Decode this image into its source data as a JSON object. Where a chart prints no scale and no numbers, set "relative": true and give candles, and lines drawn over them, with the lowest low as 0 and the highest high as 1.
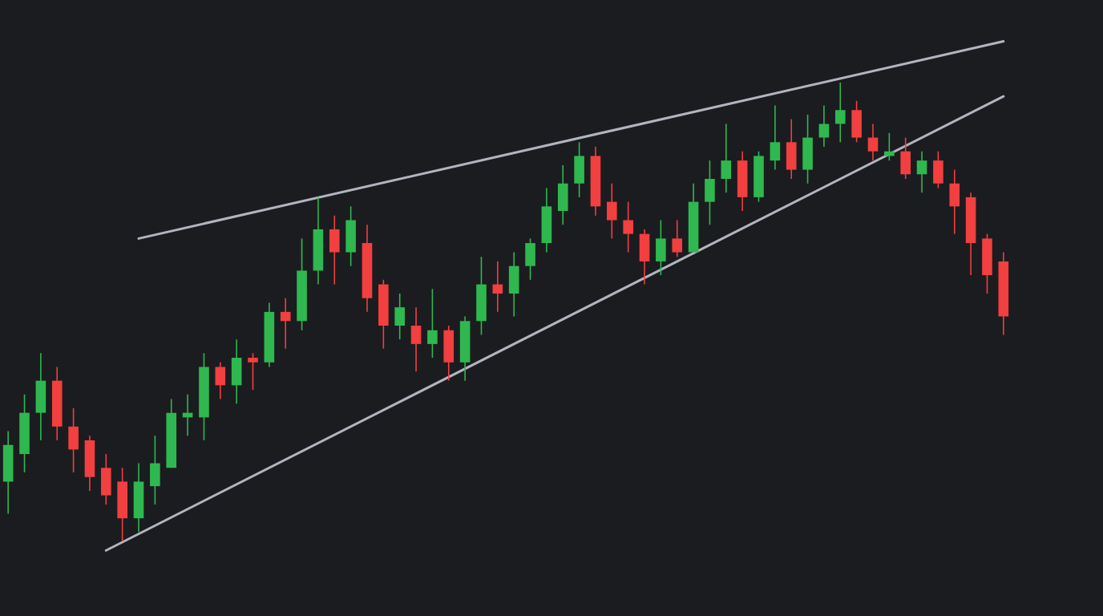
{
  "chart_data": {
    "type": "candlestick",
    "relative": true,
    "categories": [
      null,
      null,
      null,
      null,
      null,
      null,
      null,
      null,
      null,
      null,
      null,
      null,
      null,
      null,
      null,
      null,
      null,
      null,
      null,
      null,
      null,
      null,
      null,
      null,
      null,
      null,
      null,
      null,
      null,
      null,
      null,
      null,
      null,
      null,
      null,
      null,
      null,
      null,
      null,
      null,
      null,
      null,
      null,
      null,
      null,
      null,
      null,
      null,
      null,
      null,
      null,
      null,
      null,
      null,
      null,
      null,
      null,
      null,
      null,
      null,
      null,
      null
    ],
    "ohlc": [
      [
        0.13,
        0.24,
        0.06,
        0.21
      ],
      [
        0.19,
        0.32,
        0.15,
        0.28
      ],
      [
        0.28,
        0.41,
        0.22,
        0.35
      ],
      [
        0.35,
        0.38,
        0.22,
        0.25
      ],
      [
        0.25,
        0.29,
        0.15,
        0.2
      ],
      [
        0.22,
        0.23,
        0.11,
        0.14
      ],
      [
        0.16,
        0.19,
        0.08,
        0.1
      ],
      [
        0.13,
        0.16,
        0.0,
        0.05
      ],
      [
        0.05,
        0.17,
        0.02,
        0.13
      ],
      [
        0.12,
        0.23,
        0.08,
        0.17
      ],
      [
        0.16,
        0.31,
        0.16,
        0.28
      ],
      [
        0.27,
        0.32,
        0.23,
        0.28
      ],
      [
        0.27,
        0.41,
        0.22,
        0.38
      ],
      [
        0.38,
        0.39,
        0.31,
        0.34
      ],
      [
        0.34,
        0.44,
        0.3,
        0.4
      ],
      [
        0.4,
        0.41,
        0.33,
        0.39
      ],
      [
        0.39,
        0.52,
        0.38,
        0.5
      ],
      [
        0.5,
        0.53,
        0.42,
        0.48
      ],
      [
        0.48,
        0.66,
        0.46,
        0.59
      ],
      [
        0.59,
        0.75,
        0.56,
        0.68
      ],
      [
        0.68,
        0.71,
        0.56,
        0.63
      ],
      [
        0.63,
        0.73,
        0.6,
        0.7
      ],
      [
        0.65,
        0.69,
        0.5,
        0.53
      ],
      [
        0.56,
        0.57,
        0.42,
        0.47
      ],
      [
        0.47,
        0.54,
        0.44,
        0.51
      ],
      [
        0.47,
        0.51,
        0.37,
        0.43
      ],
      [
        0.43,
        0.55,
        0.4,
        0.46
      ],
      [
        0.46,
        0.47,
        0.35,
        0.39
      ],
      [
        0.39,
        0.49,
        0.35,
        0.48
      ],
      [
        0.48,
        0.62,
        0.45,
        0.56
      ],
      [
        0.56,
        0.61,
        0.5,
        0.54
      ],
      [
        0.54,
        0.63,
        0.49,
        0.6
      ],
      [
        0.6,
        0.66,
        0.57,
        0.65
      ],
      [
        0.65,
        0.77,
        0.63,
        0.73
      ],
      [
        0.72,
        0.82,
        0.69,
        0.78
      ],
      [
        0.78,
        0.87,
        0.75,
        0.84
      ],
      [
        0.84,
        0.86,
        0.71,
        0.73
      ],
      [
        0.74,
        0.78,
        0.66,
        0.7
      ],
      [
        0.7,
        0.74,
        0.63,
        0.67
      ],
      [
        0.67,
        0.68,
        0.56,
        0.61
      ],
      [
        0.61,
        0.7,
        0.58,
        0.66
      ],
      [
        0.66,
        0.7,
        0.62,
        0.63
      ],
      [
        0.63,
        0.78,
        0.63,
        0.74
      ],
      [
        0.74,
        0.83,
        0.69,
        0.79
      ],
      [
        0.79,
        0.91,
        0.76,
        0.83
      ],
      [
        0.83,
        0.85,
        0.72,
        0.75
      ],
      [
        0.75,
        0.85,
        0.74,
        0.84
      ],
      [
        0.83,
        0.95,
        0.81,
        0.87
      ],
      [
        0.87,
        0.92,
        0.79,
        0.81
      ],
      [
        0.81,
        0.93,
        0.78,
        0.88
      ],
      [
        0.88,
        0.95,
        0.86,
        0.91
      ],
      [
        0.91,
        1.0,
        0.87,
        0.94
      ],
      [
        0.94,
        0.96,
        0.87,
        0.88
      ],
      [
        0.88,
        0.91,
        0.83,
        0.85
      ],
      [
        0.84,
        0.89,
        0.83,
        0.85
      ],
      [
        0.85,
        0.88,
        0.79,
        0.8
      ],
      [
        0.8,
        0.85,
        0.76,
        0.83
      ],
      [
        0.83,
        0.85,
        0.77,
        0.78
      ],
      [
        0.78,
        0.81,
        0.67,
        0.73
      ],
      [
        0.75,
        0.76,
        0.58,
        0.65
      ],
      [
        0.66,
        0.67,
        0.54,
        0.58
      ],
      [
        0.61,
        0.63,
        0.45,
        0.49
      ]
    ],
    "colors": [
      "#2fb84f",
      "#2fb84f",
      "#2fb84f",
      "#f23f3f",
      "#f23f3f",
      "#f23f3f",
      "#f23f3f",
      "#f23f3f",
      "#2fb84f",
      "#2fb84f",
      "#2fb84f",
      "#2fb84f",
      "#2fb84f",
      "#f23f3f",
      "#2fb84f",
      "#f23f3f",
      "#2fb84f",
      "#f23f3f",
      "#2fb84f",
      "#2fb84f",
      "#f23f3f",
      "#2fb84f",
      "#f23f3f",
      "#f23f3f",
      "#2fb84f",
      "#f23f3f",
      "#2fb84f",
      "#f23f3f",
      "#2fb84f",
      "#2fb84f",
      "#f23f3f",
      "#2fb84f",
      "#2fb84f",
      "#2fb84f",
      "#2fb84f",
      "#2fb84f",
      "#f23f3f",
      "#f23f3f",
      "#f23f3f",
      "#f23f3f",
      "#2fb84f",
      "#f23f3f",
      "#2fb84f",
      "#2fb84f",
      "#2fb84f",
      "#f23f3f",
      "#2fb84f",
      "#2fb84f",
      "#f23f3f",
      "#2fb84f",
      "#2fb84f",
      "#2fb84f",
      "#f23f3f",
      "#f23f3f",
      "#2fb84f",
      "#f23f3f",
      "#2fb84f",
      "#f23f3f",
      "#f23f3f",
      "#f23f3f",
      "#f23f3f",
      "#f23f3f"
    ],
    "series": [
      {
        "type": "line",
        "color": "#c3c7d2",
        "values": [
          null,
          null,
          null,
          null,
          null,
          null,
          null,
          null,
          0.66,
          null,
          null,
          null,
          null,
          null,
          null,
          null,
          null,
          null,
          null,
          null,
          null,
          null,
          null,
          null,
          null,
          null,
          null,
          null,
          null,
          null,
          null,
          null,
          null,
          null,
          null,
          null,
          null,
          null,
          null,
          null,
          null,
          null,
          null,
          null,
          null,
          null,
          null,
          null,
          null,
          null,
          null,
          null,
          null,
          null,
          null,
          null,
          null,
          null,
          null,
          null,
          null,
          1.09
        ]
      },
      {
        "type": "line",
        "color": "#c3c7d2",
        "values": [
          null,
          null,
          null,
          null,
          null,
          null,
          -0.02,
          null,
          null,
          null,
          null,
          null,
          null,
          null,
          null,
          null,
          null,
          null,
          null,
          null,
          null,
          null,
          null,
          null,
          null,
          null,
          null,
          null,
          null,
          null,
          null,
          null,
          null,
          null,
          null,
          null,
          null,
          null,
          null,
          null,
          null,
          null,
          null,
          null,
          null,
          null,
          null,
          null,
          null,
          null,
          null,
          null,
          null,
          null,
          null,
          null,
          null,
          null,
          null,
          null,
          null,
          0.97
        ]
      }
    ]
  }
}
